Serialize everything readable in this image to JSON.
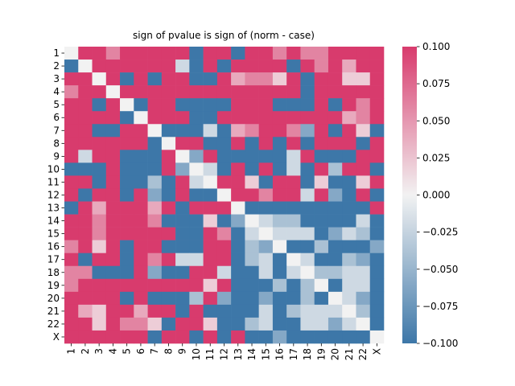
{
  "chart_data": {
    "type": "heatmap",
    "title": "sign of pvalue is sign of (norm - case)",
    "xlabel": "",
    "ylabel": "",
    "labels": [
      "1",
      "2",
      "3",
      "4",
      "5",
      "6",
      "7",
      "8",
      "9",
      "10",
      "11",
      "12",
      "13",
      "14",
      "15",
      "16",
      "17",
      "18",
      "19",
      "20",
      "21",
      "22",
      "X"
    ],
    "colorbar": {
      "vmin": -0.1,
      "vmax": 0.1,
      "ticks": [
        0.1,
        0.075,
        0.05,
        0.025,
        0.0,
        -0.025,
        -0.05,
        -0.075,
        -0.1
      ],
      "tick_labels": [
        "0.100",
        "0.075",
        "0.050",
        "0.025",
        "0.000",
        "−0.025",
        "−0.050",
        "−0.075",
        "−0.100"
      ],
      "colors": {
        "low": "#3d77a8",
        "mid": "#f2f2f2",
        "high": "#d83b6d"
      }
    },
    "matrix": [
      [
        0.0,
        0.1,
        0.1,
        0.06,
        0.1,
        0.1,
        0.1,
        0.1,
        0.1,
        -0.1,
        0.1,
        0.1,
        -0.1,
        0.1,
        0.1,
        0.06,
        0.1,
        0.06,
        0.06,
        0.1,
        0.1,
        0.1,
        0.1
      ],
      [
        -0.1,
        0.0,
        0.1,
        0.1,
        0.1,
        0.1,
        0.1,
        0.1,
        -0.02,
        -0.1,
        0.1,
        -0.1,
        0.1,
        0.1,
        0.1,
        0.1,
        -0.1,
        0.1,
        0.06,
        0.1,
        0.04,
        0.1,
        0.1
      ],
      [
        0.1,
        0.1,
        0.0,
        0.1,
        -0.1,
        0.1,
        -0.1,
        0.1,
        0.1,
        -0.1,
        -0.1,
        0.1,
        0.04,
        0.06,
        0.06,
        0.02,
        0.1,
        -0.1,
        0.1,
        0.1,
        0.02,
        0.02,
        0.1
      ],
      [
        0.06,
        0.1,
        0.1,
        0.0,
        0.1,
        0.1,
        0.1,
        0.1,
        0.1,
        0.1,
        0.1,
        0.1,
        0.1,
        0.1,
        0.1,
        0.1,
        0.1,
        -0.1,
        0.1,
        0.1,
        0.1,
        0.1,
        0.1
      ],
      [
        0.1,
        0.1,
        -0.1,
        0.1,
        0.0,
        -0.1,
        0.1,
        0.1,
        -0.1,
        -0.1,
        -0.1,
        -0.1,
        0.1,
        0.1,
        0.1,
        -0.1,
        -0.1,
        -0.1,
        0.1,
        -0.1,
        0.1,
        0.06,
        0.1
      ],
      [
        0.1,
        0.1,
        0.1,
        0.1,
        -0.1,
        0.0,
        0.1,
        0.1,
        0.1,
        -0.1,
        -0.1,
        0.1,
        0.1,
        0.1,
        0.1,
        0.1,
        0.1,
        0.1,
        0.1,
        0.1,
        0.04,
        0.06,
        0.1
      ],
      [
        0.1,
        0.1,
        -0.1,
        -0.1,
        0.1,
        0.1,
        0.0,
        -0.1,
        -0.1,
        -0.1,
        -0.02,
        -0.1,
        0.04,
        0.06,
        0.1,
        0.1,
        0.06,
        -0.06,
        0.1,
        -0.1,
        0.1,
        0.02,
        -0.1
      ],
      [
        0.1,
        0.1,
        0.1,
        0.1,
        0.1,
        0.1,
        -0.1,
        0.0,
        0.1,
        0.1,
        -0.1,
        -0.1,
        0.1,
        -0.1,
        0.1,
        -0.1,
        0.1,
        -0.1,
        0.1,
        0.1,
        0.1,
        -0.1,
        0.1
      ],
      [
        0.1,
        -0.02,
        0.1,
        0.1,
        -0.1,
        -0.1,
        -0.1,
        0.1,
        0.0,
        -0.06,
        0.1,
        -0.1,
        -0.1,
        -0.1,
        -0.1,
        -0.1,
        -0.02,
        0.1,
        -0.1,
        -0.1,
        -0.1,
        0.1,
        0.1
      ],
      [
        -0.1,
        -0.1,
        -0.1,
        0.1,
        -0.1,
        -0.1,
        -0.1,
        0.1,
        -0.06,
        0.0,
        -0.02,
        -0.1,
        0.1,
        -0.1,
        0.1,
        -0.1,
        -0.02,
        -0.1,
        0.1,
        -0.04,
        0.1,
        0.1,
        -0.1
      ],
      [
        0.1,
        0.1,
        -0.1,
        0.1,
        -0.1,
        -0.1,
        -0.04,
        -0.1,
        0.1,
        -0.02,
        0.0,
        0.1,
        0.1,
        0.02,
        -0.1,
        0.1,
        0.1,
        -0.1,
        0.02,
        -0.1,
        -0.1,
        0.02,
        0.1
      ],
      [
        0.1,
        -0.1,
        0.1,
        0.1,
        -0.1,
        0.1,
        -0.06,
        -0.1,
        0.1,
        -0.1,
        -0.1,
        0.0,
        0.1,
        0.1,
        0.06,
        0.1,
        0.1,
        -0.02,
        0.1,
        -0.06,
        -0.1,
        0.1,
        -0.1
      ],
      [
        -0.1,
        0.1,
        0.04,
        0.1,
        0.1,
        0.1,
        0.04,
        0.1,
        -0.1,
        0.1,
        0.1,
        0.1,
        0.0,
        -0.1,
        -0.1,
        -0.1,
        -0.1,
        -0.1,
        -0.1,
        -0.1,
        -0.1,
        -0.1,
        0.1
      ],
      [
        0.1,
        0.1,
        0.06,
        0.1,
        0.1,
        0.1,
        0.06,
        -0.1,
        -0.1,
        -0.1,
        0.02,
        -0.1,
        -0.06,
        0.0,
        -0.02,
        -0.04,
        -0.04,
        -0.1,
        -0.1,
        -0.1,
        -0.1,
        -0.02,
        -0.1
      ],
      [
        0.1,
        0.1,
        0.06,
        0.1,
        0.1,
        0.1,
        0.1,
        0.1,
        -0.1,
        -0.1,
        0.1,
        0.06,
        -0.1,
        -0.02,
        0.0,
        -0.02,
        -0.02,
        -0.02,
        -0.1,
        -0.06,
        -0.02,
        -0.04,
        -0.1
      ],
      [
        0.06,
        0.1,
        0.02,
        0.1,
        -0.1,
        0.1,
        0.1,
        -0.1,
        -0.1,
        -0.1,
        0.1,
        0.1,
        -0.1,
        -0.04,
        -0.06,
        0.0,
        -0.1,
        -0.1,
        -0.04,
        -0.1,
        -0.1,
        -0.1,
        -0.06
      ],
      [
        0.1,
        -0.1,
        0.1,
        0.1,
        -0.1,
        0.1,
        0.06,
        0.1,
        -0.02,
        -0.02,
        0.1,
        0.1,
        -0.1,
        -0.04,
        -0.02,
        -0.1,
        0.0,
        -0.02,
        -0.1,
        -0.1,
        -0.04,
        -0.06,
        -0.1
      ],
      [
        0.06,
        0.06,
        -0.1,
        -0.1,
        -0.1,
        0.1,
        -0.06,
        -0.1,
        -0.1,
        0.1,
        0.1,
        -0.02,
        -0.1,
        -0.1,
        -0.02,
        -0.1,
        -0.02,
        0.0,
        -0.04,
        -0.04,
        -0.02,
        -0.02,
        -0.1
      ],
      [
        0.06,
        0.1,
        0.1,
        0.1,
        0.1,
        0.1,
        0.1,
        0.1,
        0.1,
        0.1,
        0.02,
        0.1,
        -0.1,
        -0.1,
        -0.1,
        -0.04,
        -0.1,
        -0.04,
        0.0,
        -0.1,
        -0.02,
        -0.02,
        -0.1
      ],
      [
        0.1,
        0.1,
        0.1,
        0.1,
        -0.1,
        0.1,
        -0.1,
        -0.1,
        -0.1,
        -0.04,
        0.1,
        -0.06,
        -0.1,
        -0.1,
        -0.06,
        -0.1,
        -0.1,
        -0.04,
        -0.1,
        0.0,
        -0.02,
        -0.06,
        -0.1
      ],
      [
        0.1,
        0.04,
        0.02,
        0.1,
        0.1,
        0.04,
        0.1,
        0.1,
        -0.1,
        0.1,
        -0.1,
        -0.1,
        -0.1,
        -0.1,
        -0.02,
        -0.1,
        -0.04,
        -0.02,
        -0.02,
        -0.02,
        0.0,
        -0.04,
        -0.1
      ],
      [
        0.1,
        0.1,
        0.02,
        0.1,
        0.06,
        0.06,
        0.02,
        -0.1,
        0.1,
        0.1,
        0.02,
        -0.1,
        -0.1,
        -0.04,
        -0.02,
        -0.1,
        -0.1,
        -0.02,
        -0.02,
        -0.06,
        -0.02,
        0.0,
        -0.1
      ],
      [
        0.1,
        0.1,
        0.1,
        0.1,
        0.1,
        0.1,
        -0.1,
        0.1,
        0.1,
        -0.1,
        0.1,
        -0.1,
        0.1,
        -0.1,
        -0.1,
        -0.06,
        -0.1,
        -0.1,
        -0.1,
        -0.1,
        -0.1,
        -0.1,
        0.0
      ]
    ]
  }
}
